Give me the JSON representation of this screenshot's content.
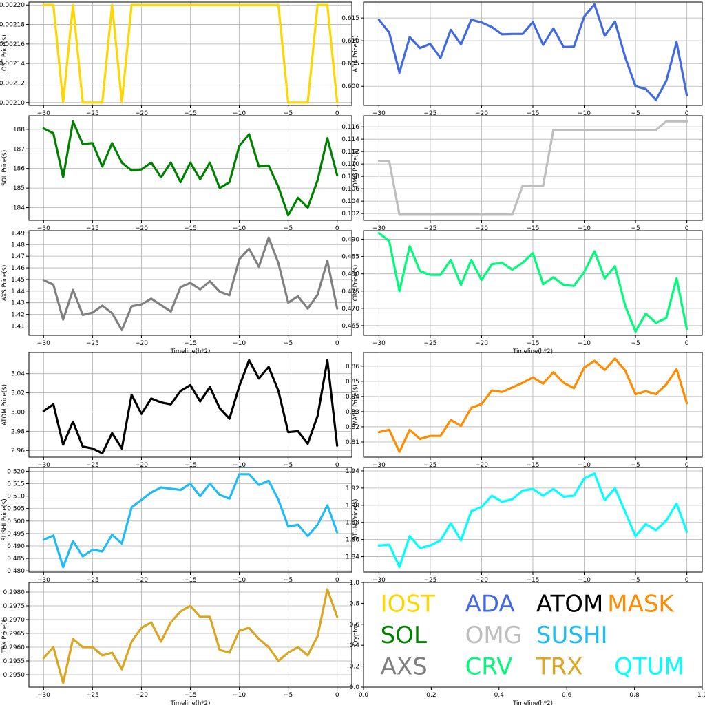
{
  "chart_data": [
    {
      "type": "line",
      "ylabel": "IOST Price($)",
      "color": "#FFD700",
      "x_ticks": [
        -30,
        -25,
        -20,
        -15,
        -10,
        -5,
        0
      ],
      "y_ticks": [
        "0.00210",
        "0.00212",
        "0.00214",
        "0.00216",
        "0.00218",
        "0.00220"
      ],
      "ylim": [
        0.002097,
        0.002203
      ],
      "x": [
        -30,
        -29,
        -28,
        -27,
        -26,
        -25,
        -24,
        -23,
        -22,
        -21,
        -20,
        -19,
        -18,
        -17,
        -16,
        -15,
        -14,
        -13,
        -12,
        -11,
        -10,
        -9,
        -8,
        -7,
        -6,
        -5,
        -4,
        -3,
        -2,
        -1,
        0
      ],
      "values": [
        0.0022,
        0.0022,
        0.0021,
        0.0022,
        0.0021,
        0.0021,
        0.0021,
        0.0022,
        0.0021,
        0.0022,
        0.0022,
        0.0022,
        0.0022,
        0.0022,
        0.0022,
        0.0022,
        0.0022,
        0.0022,
        0.0022,
        0.0022,
        0.0022,
        0.0022,
        0.0022,
        0.0022,
        0.0022,
        0.0021,
        0.0021,
        0.0021,
        0.0022,
        0.0022,
        0.0021
      ]
    },
    {
      "type": "line",
      "ylabel": "ADA  Price($)",
      "color": "#4169E1",
      "x_ticks": [
        -30,
        -25,
        -20,
        -15,
        -10,
        -5,
        0
      ],
      "y_ticks": [
        "0.600",
        "0.605",
        "0.610",
        "0.615"
      ],
      "ylim": [
        0.5958,
        0.6185
      ],
      "x": [
        -30,
        -29,
        -28,
        -27,
        -26,
        -25,
        -24,
        -23,
        -22,
        -21,
        -20,
        -19,
        -18,
        -17,
        -16,
        -15,
        -14,
        -13,
        -12,
        -11,
        -10,
        -9,
        -8,
        -7,
        -6,
        -5,
        -4,
        -3,
        -2,
        -1,
        0
      ],
      "values": [
        0.6146,
        0.6118,
        0.603,
        0.6108,
        0.6084,
        0.6093,
        0.6062,
        0.6124,
        0.6092,
        0.6146,
        0.614,
        0.613,
        0.6114,
        0.6115,
        0.6115,
        0.6141,
        0.6091,
        0.6127,
        0.6086,
        0.6087,
        0.6153,
        0.618,
        0.6111,
        0.6142,
        0.6063,
        0.6,
        0.5994,
        0.597,
        0.6012,
        0.6097,
        0.598
      ]
    },
    {
      "type": "line",
      "ylabel": "SOL Price($)",
      "color": "#008000",
      "x_ticks": [
        -30,
        -25,
        -20,
        -15,
        -10,
        -5,
        0
      ],
      "y_ticks": [
        "184",
        "185",
        "186",
        "187",
        "188"
      ],
      "ylim": [
        183.35,
        188.7
      ],
      "x": [
        -30,
        -29,
        -28,
        -27,
        -26,
        -25,
        -24,
        -23,
        -22,
        -21,
        -20,
        -19,
        -18,
        -17,
        -16,
        -15,
        -14,
        -13,
        -12,
        -11,
        -10,
        -9,
        -8,
        -7,
        -6,
        -5,
        -4,
        -3,
        -2,
        -1,
        0
      ],
      "values": [
        188.05,
        187.8,
        185.55,
        188.4,
        187.25,
        187.3,
        186.1,
        187.3,
        186.3,
        185.9,
        185.95,
        186.3,
        185.55,
        186.3,
        185.3,
        186.3,
        185.45,
        186.3,
        185.0,
        185.3,
        187.15,
        187.75,
        186.1,
        186.15,
        185.05,
        183.6,
        184.5,
        184.0,
        185.4,
        187.55,
        185.65
      ]
    },
    {
      "type": "line",
      "ylabel": "OMG  Price($)",
      "color": "#BEBEBE",
      "x_ticks": [
        -30,
        -25,
        -20,
        -15,
        -10,
        -5,
        0
      ],
      "y_ticks": [
        "0.102",
        "0.104",
        "0.106",
        "0.108",
        "0.110",
        "0.112",
        "0.114",
        "0.116"
      ],
      "ylim": [
        0.1009,
        0.1178
      ],
      "x": [
        -30,
        -29,
        -28,
        -27,
        -26,
        -25,
        -24,
        -23,
        -22,
        -21,
        -20,
        -19,
        -18,
        -17,
        -16,
        -15,
        -14,
        -13,
        -12,
        -11,
        -10,
        -9,
        -8,
        -7,
        -6,
        -5,
        -4,
        -3,
        -2,
        -1,
        0
      ],
      "values": [
        0.1105,
        0.1105,
        0.1018,
        0.1018,
        0.1018,
        0.1018,
        0.1018,
        0.1018,
        0.1018,
        0.1018,
        0.1018,
        0.1018,
        0.1018,
        0.1018,
        0.1065,
        0.1065,
        0.1065,
        0.1155,
        0.1155,
        0.1155,
        0.1155,
        0.1155,
        0.1155,
        0.1155,
        0.1155,
        0.1155,
        0.1155,
        0.1155,
        0.1169,
        0.1169,
        0.1169
      ]
    },
    {
      "type": "line",
      "ylabel": "AXS Price($)",
      "color": "#808080",
      "xlabel": "Timeline(h*2)",
      "x_ticks": [
        -30,
        -25,
        -20,
        -15,
        -10,
        -5,
        0
      ],
      "y_ticks": [
        "1.41",
        "1.42",
        "1.43",
        "1.44",
        "1.45",
        "1.46",
        "1.47",
        "1.48",
        "1.49"
      ],
      "ylim": [
        1.402,
        1.492
      ],
      "x": [
        -30,
        -29,
        -28,
        -27,
        -26,
        -25,
        -24,
        -23,
        -22,
        -21,
        -20,
        -19,
        -18,
        -17,
        -16,
        -15,
        -14,
        -13,
        -12,
        -11,
        -10,
        -9,
        -8,
        -7,
        -6,
        -5,
        -4,
        -3,
        -2,
        -1,
        0
      ],
      "values": [
        1.4495,
        1.4455,
        1.4155,
        1.441,
        1.4195,
        1.4215,
        1.4275,
        1.421,
        1.4065,
        1.427,
        1.4285,
        1.4335,
        1.428,
        1.4225,
        1.4435,
        1.447,
        1.4415,
        1.4485,
        1.4395,
        1.4365,
        1.4675,
        1.4765,
        1.461,
        1.486,
        1.464,
        1.43,
        1.4355,
        1.425,
        1.437,
        1.466,
        1.425
      ]
    },
    {
      "type": "line",
      "ylabel": "CRV  Price($)",
      "color": "#00FA7A",
      "xlabel": "Timeline(h*2)",
      "x_ticks": [
        -30,
        -25,
        -20,
        -15,
        -10,
        -5,
        0
      ],
      "y_ticks": [
        "0.465",
        "0.470",
        "0.475",
        "0.480",
        "0.485",
        "0.490"
      ],
      "ylim": [
        0.4622,
        0.4925
      ],
      "x": [
        -30,
        -29,
        -28,
        -27,
        -26,
        -25,
        -24,
        -23,
        -22,
        -21,
        -20,
        -19,
        -18,
        -17,
        -16,
        -15,
        -14,
        -13,
        -12,
        -11,
        -10,
        -9,
        -8,
        -7,
        -6,
        -5,
        -4,
        -3,
        -2,
        -1,
        0
      ],
      "values": [
        0.4918,
        0.4895,
        0.475,
        0.488,
        0.4808,
        0.4797,
        0.4797,
        0.484,
        0.4768,
        0.484,
        0.4782,
        0.4828,
        0.4832,
        0.4812,
        0.4832,
        0.486,
        0.477,
        0.479,
        0.4768,
        0.4765,
        0.4805,
        0.4865,
        0.4787,
        0.4822,
        0.4707,
        0.4633,
        0.4685,
        0.4658,
        0.4672,
        0.4787,
        0.464
      ]
    },
    {
      "type": "line",
      "ylabel": "ATOM  Price($)",
      "color": "#000000",
      "x_ticks": [
        -30,
        -25,
        -20,
        -15,
        -10,
        -5,
        0
      ],
      "y_ticks": [
        "2.96",
        "2.98",
        "3.00",
        "3.02",
        "3.04"
      ],
      "ylim": [
        2.953,
        3.062
      ],
      "x": [
        -30,
        -29,
        -28,
        -27,
        -26,
        -25,
        -24,
        -23,
        -22,
        -21,
        -20,
        -19,
        -18,
        -17,
        -16,
        -15,
        -14,
        -13,
        -12,
        -11,
        -10,
        -9,
        -8,
        -7,
        -6,
        -5,
        -4,
        -3,
        -2,
        -1,
        0
      ],
      "values": [
        3.001,
        3.008,
        2.966,
        2.99,
        2.964,
        2.962,
        2.957,
        2.978,
        2.962,
        3.018,
        2.998,
        3.014,
        3.01,
        3.008,
        3.022,
        3.028,
        3.011,
        3.026,
        3.004,
        2.993,
        3.027,
        3.054,
        3.035,
        3.047,
        3.022,
        2.979,
        2.98,
        2.967,
        2.996,
        3.054,
        2.965
      ]
    },
    {
      "type": "line",
      "ylabel": "MASK  Price($)",
      "color": "#FF8C00",
      "x_ticks": [
        -30,
        -25,
        -20,
        -15,
        -10,
        -5,
        0
      ],
      "y_ticks": [
        "0.81",
        "0.82",
        "0.83",
        "0.84",
        "0.85",
        "0.86"
      ],
      "ylim": [
        0.8,
        0.869
      ],
      "x": [
        -30,
        -29,
        -28,
        -27,
        -26,
        -25,
        -24,
        -23,
        -22,
        -21,
        -20,
        -19,
        -18,
        -17,
        -16,
        -15,
        -14,
        -13,
        -12,
        -11,
        -10,
        -9,
        -8,
        -7,
        -6,
        -5,
        -4,
        -3,
        -2,
        -1,
        0
      ],
      "values": [
        0.8165,
        0.818,
        0.8035,
        0.818,
        0.812,
        0.814,
        0.814,
        0.8245,
        0.8205,
        0.8325,
        0.835,
        0.844,
        0.843,
        0.846,
        0.849,
        0.8525,
        0.8485,
        0.856,
        0.849,
        0.8455,
        0.859,
        0.8635,
        0.8575,
        0.865,
        0.857,
        0.8415,
        0.8435,
        0.8415,
        0.848,
        0.858,
        0.8355
      ]
    },
    {
      "type": "line",
      "ylabel": "SUSHI  Price($)",
      "color": "#1EBBF5",
      "x_ticks": [
        -30,
        -25,
        -20,
        -15,
        -10,
        -5,
        0
      ],
      "y_ticks": [
        "0.480",
        "0.485",
        "0.490",
        "0.495",
        "0.500",
        "0.505",
        "0.510",
        "0.515",
        "0.520"
      ],
      "ylim": [
        0.4795,
        0.5215
      ],
      "x": [
        -30,
        -29,
        -28,
        -27,
        -26,
        -25,
        -24,
        -23,
        -22,
        -21,
        -20,
        -19,
        -18,
        -17,
        -16,
        -15,
        -14,
        -13,
        -12,
        -11,
        -10,
        -9,
        -8,
        -7,
        -6,
        -5,
        -4,
        -3,
        -2,
        -1,
        0
      ],
      "values": [
        0.4925,
        0.4942,
        0.4815,
        0.492,
        0.4858,
        0.4885,
        0.4878,
        0.4945,
        0.491,
        0.5055,
        0.5085,
        0.5115,
        0.5135,
        0.513,
        0.5125,
        0.515,
        0.51,
        0.515,
        0.5105,
        0.509,
        0.5188,
        0.5188,
        0.5145,
        0.5162,
        0.5085,
        0.4978,
        0.4985,
        0.494,
        0.4985,
        0.5063,
        0.4955
      ]
    },
    {
      "type": "line",
      "ylabel": "QTUM Price($)",
      "color": "#00FFFF",
      "x_ticks": [
        -30,
        -25,
        -20,
        -15,
        -10,
        -5,
        0
      ],
      "y_ticks": [
        "1.84",
        "1.86",
        "1.88",
        "1.90",
        "1.92",
        "1.94"
      ],
      "ylim": [
        1.822,
        1.944
      ],
      "x": [
        -30,
        -29,
        -28,
        -27,
        -26,
        -25,
        -24,
        -23,
        -22,
        -21,
        -20,
        -19,
        -18,
        -17,
        -16,
        -15,
        -14,
        -13,
        -12,
        -11,
        -10,
        -9,
        -8,
        -7,
        -6,
        -5,
        -4,
        -3,
        -2,
        -1,
        0
      ],
      "values": [
        1.853,
        1.854,
        1.828,
        1.864,
        1.85,
        1.853,
        1.859,
        1.879,
        1.859,
        1.893,
        1.898,
        1.911,
        1.904,
        1.907,
        1.917,
        1.919,
        1.911,
        1.919,
        1.91,
        1.911,
        1.931,
        1.937,
        1.906,
        1.92,
        1.892,
        1.864,
        1.878,
        1.871,
        1.882,
        1.902,
        1.869
      ]
    },
    {
      "type": "line",
      "ylabel": "TRX Price($)",
      "color": "#DAA520",
      "xlabel": "Timeline(h*2)",
      "x_ticks": [
        -30,
        -25,
        -20,
        -15,
        -10,
        -5,
        0
      ],
      "y_ticks": [
        "0.2950",
        "0.2955",
        "0.2960",
        "0.2965",
        "0.2970",
        "0.2975",
        "0.2980"
      ],
      "ylim": [
        0.29455,
        0.29835
      ],
      "x": [
        -30,
        -29,
        -28,
        -27,
        -26,
        -25,
        -24,
        -23,
        -22,
        -21,
        -20,
        -19,
        -18,
        -17,
        -16,
        -15,
        -14,
        -13,
        -12,
        -11,
        -10,
        -9,
        -8,
        -7,
        -6,
        -5,
        -4,
        -3,
        -2,
        -1,
        0
      ],
      "values": [
        0.2956,
        0.296,
        0.2947,
        0.2963,
        0.296,
        0.296,
        0.2957,
        0.2958,
        0.2952,
        0.2962,
        0.2967,
        0.2969,
        0.2962,
        0.2969,
        0.2973,
        0.2975,
        0.2971,
        0.2971,
        0.2959,
        0.2958,
        0.2966,
        0.2967,
        0.2963,
        0.296,
        0.2955,
        0.2958,
        0.296,
        0.2957,
        0.2964,
        0.2981,
        0.2971
      ]
    },
    {
      "type": "table",
      "ylabel": "Cryptos",
      "xlabel": "Timeline(h*2)",
      "x_ticks": [
        "0.0",
        "0.2",
        "0.4",
        "0.6",
        "0.8",
        "1.0"
      ],
      "y_ticks": [
        "0.0",
        "0.2",
        "0.4",
        "0.6",
        "0.8",
        "1.0"
      ],
      "xlim": [
        0,
        1
      ],
      "ylim": [
        0,
        1
      ],
      "legend": [
        {
          "name": "IOST",
          "color": "#FFD700"
        },
        {
          "name": "ADA",
          "color": "#4169E1"
        },
        {
          "name": "ATOM",
          "color": "#000000"
        },
        {
          "name": "MASK",
          "color": "#FF8C00"
        },
        {
          "name": "SOL",
          "color": "#008000"
        },
        {
          "name": "OMG",
          "color": "#BEBEBE"
        },
        {
          "name": "SUSHI",
          "color": "#1EBBF5"
        },
        {
          "name": "AXS",
          "color": "#808080"
        },
        {
          "name": "CRV",
          "color": "#00FA7A"
        },
        {
          "name": "TRX",
          "color": "#DAA520"
        },
        {
          "name": "QTUM",
          "color": "#00FFFF"
        }
      ]
    }
  ]
}
